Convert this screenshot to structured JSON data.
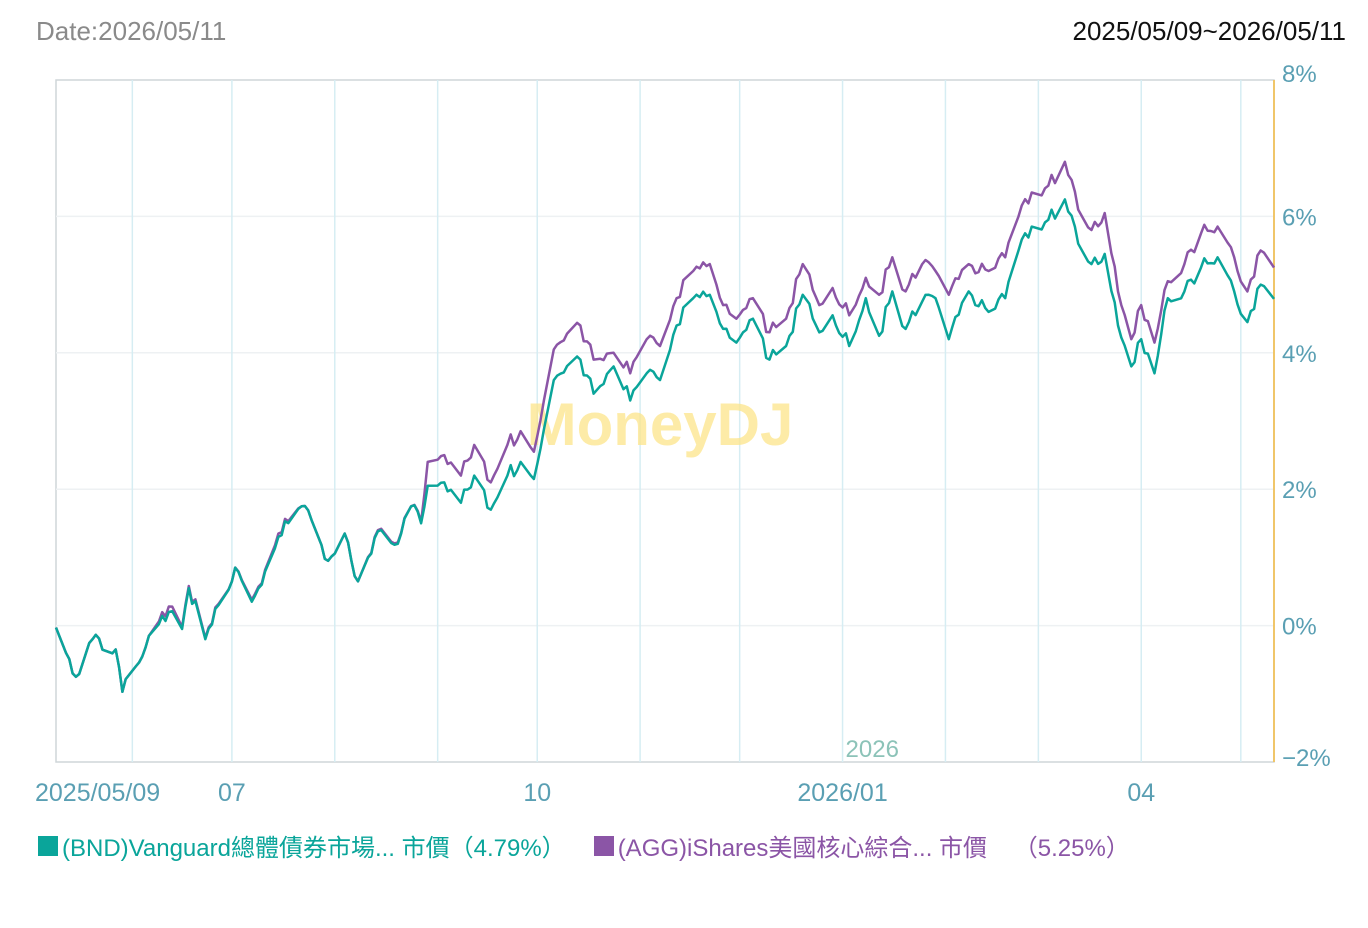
{
  "header": {
    "date_label": "Date:2026/05/11",
    "range_label": "2025/05/09~2026/05/11"
  },
  "watermark": "MoneyDJ",
  "legend": [
    {
      "label": "(BND)Vanguard總體債券市場... 市價（4.79%）",
      "color": "#0aa59a"
    },
    {
      "label": "(AGG)iShares美國核心綜合... 市價    （5.25%）",
      "color": "#8b55a6"
    }
  ],
  "chart_data": {
    "type": "line",
    "x_start": "2025/05/09",
    "x_end": "2026/05/11",
    "x_tick_labels": [
      "2025/05/09",
      "07",
      "10",
      "2026/01",
      "04"
    ],
    "x_tick_dates": [
      "2025-05-09",
      "2025-07-01",
      "2025-10-01",
      "2026-01-01",
      "2026-04-01"
    ],
    "year_marker": "2026",
    "y_tick_labels": [
      "8%",
      "6%",
      "4%",
      "2%",
      "0%",
      "−2%"
    ],
    "y_ticks": [
      8,
      6,
      4,
      2,
      0,
      -2
    ],
    "ylim": [
      -2,
      8
    ],
    "grid": true,
    "series": [
      {
        "name": "(BND)Vanguard總體債券市場... 市價",
        "color": "#0aa59a",
        "final_value": 4.79,
        "keypoints": [
          [
            "2025-05-09",
            -0.03
          ],
          [
            "2025-05-12",
            -0.4
          ],
          [
            "2025-05-15",
            -0.75
          ],
          [
            "2025-05-20",
            -0.2
          ],
          [
            "2025-05-27",
            -0.35
          ],
          [
            "2025-05-29",
            -0.97
          ],
          [
            "2025-06-02",
            -0.6
          ],
          [
            "2025-06-06",
            -0.15
          ],
          [
            "2025-06-12",
            0.2
          ],
          [
            "2025-06-16",
            -0.05
          ],
          [
            "2025-06-18",
            0.55
          ],
          [
            "2025-06-23",
            -0.2
          ],
          [
            "2025-06-27",
            0.3
          ],
          [
            "2025-07-02",
            0.85
          ],
          [
            "2025-07-07",
            0.35
          ],
          [
            "2025-07-10",
            0.6
          ],
          [
            "2025-07-15",
            1.3
          ],
          [
            "2025-07-22",
            1.75
          ],
          [
            "2025-07-25",
            1.55
          ],
          [
            "2025-07-30",
            0.95
          ],
          [
            "2025-08-04",
            1.35
          ],
          [
            "2025-08-08",
            0.65
          ],
          [
            "2025-08-15",
            1.4
          ],
          [
            "2025-08-20",
            1.2
          ],
          [
            "2025-08-24",
            1.75
          ],
          [
            "2025-08-27",
            1.5
          ],
          [
            "2025-08-29",
            2.05
          ],
          [
            "2025-09-03",
            2.1
          ],
          [
            "2025-09-08",
            1.8
          ],
          [
            "2025-09-12",
            2.2
          ],
          [
            "2025-09-17",
            1.7
          ],
          [
            "2025-09-22",
            2.2
          ],
          [
            "2025-09-26",
            2.4
          ],
          [
            "2025-09-30",
            2.15
          ],
          [
            "2025-10-06",
            3.6
          ],
          [
            "2025-10-14",
            3.9
          ],
          [
            "2025-10-18",
            3.4
          ],
          [
            "2025-10-24",
            3.8
          ],
          [
            "2025-10-29",
            3.3
          ],
          [
            "2025-11-03",
            3.7
          ],
          [
            "2025-11-07",
            3.6
          ],
          [
            "2025-11-12",
            4.4
          ],
          [
            "2025-11-17",
            4.8
          ],
          [
            "2025-11-22",
            4.85
          ],
          [
            "2025-11-26",
            4.35
          ],
          [
            "2025-11-30",
            4.15
          ],
          [
            "2025-12-05",
            4.5
          ],
          [
            "2025-12-10",
            3.9
          ],
          [
            "2025-12-15",
            4.1
          ],
          [
            "2025-12-20",
            4.85
          ],
          [
            "2025-12-25",
            4.3
          ],
          [
            "2025-12-29",
            4.55
          ],
          [
            "2026-01-03",
            4.1
          ],
          [
            "2026-01-08",
            4.8
          ],
          [
            "2026-01-12",
            4.25
          ],
          [
            "2026-01-16",
            4.9
          ],
          [
            "2026-01-20",
            4.35
          ],
          [
            "2026-01-25",
            4.75
          ],
          [
            "2026-01-29",
            4.8
          ],
          [
            "2026-02-02",
            4.2
          ],
          [
            "2026-02-08",
            4.9
          ],
          [
            "2026-02-14",
            4.6
          ],
          [
            "2026-02-19",
            4.8
          ],
          [
            "2026-02-23",
            5.5
          ],
          [
            "2026-02-27",
            5.85
          ],
          [
            "2026-03-04",
            5.95
          ],
          [
            "2026-03-09",
            6.25
          ],
          [
            "2026-03-13",
            5.6
          ],
          [
            "2026-03-17",
            5.3
          ],
          [
            "2026-03-21",
            5.45
          ],
          [
            "2026-03-25",
            4.4
          ],
          [
            "2026-03-29",
            3.8
          ],
          [
            "2026-04-01",
            4.2
          ],
          [
            "2026-04-05",
            3.7
          ],
          [
            "2026-04-09",
            4.8
          ],
          [
            "2026-04-14",
            4.9
          ],
          [
            "2026-04-19",
            5.25
          ],
          [
            "2026-04-24",
            5.4
          ],
          [
            "2026-04-29",
            4.9
          ],
          [
            "2026-05-03",
            4.45
          ],
          [
            "2026-05-07",
            5.0
          ],
          [
            "2026-05-11",
            4.79
          ]
        ]
      },
      {
        "name": "(AGG)iShares美國核心綜合... 市價",
        "color": "#8b55a6",
        "final_value": 5.25,
        "keypoints": [
          [
            "2025-05-09",
            -0.03
          ],
          [
            "2025-05-12",
            -0.4
          ],
          [
            "2025-05-15",
            -0.75
          ],
          [
            "2025-05-20",
            -0.2
          ],
          [
            "2025-05-27",
            -0.35
          ],
          [
            "2025-05-29",
            -0.97
          ],
          [
            "2025-06-02",
            -0.6
          ],
          [
            "2025-06-06",
            -0.15
          ],
          [
            "2025-06-12",
            0.28
          ],
          [
            "2025-06-16",
            -0.02
          ],
          [
            "2025-06-18",
            0.58
          ],
          [
            "2025-06-23",
            -0.18
          ],
          [
            "2025-06-27",
            0.32
          ],
          [
            "2025-07-02",
            0.85
          ],
          [
            "2025-07-07",
            0.38
          ],
          [
            "2025-07-10",
            0.62
          ],
          [
            "2025-07-15",
            1.35
          ],
          [
            "2025-07-22",
            1.75
          ],
          [
            "2025-07-25",
            1.55
          ],
          [
            "2025-07-30",
            0.95
          ],
          [
            "2025-08-04",
            1.35
          ],
          [
            "2025-08-08",
            0.65
          ],
          [
            "2025-08-15",
            1.42
          ],
          [
            "2025-08-20",
            1.22
          ],
          [
            "2025-08-24",
            1.75
          ],
          [
            "2025-08-27",
            1.52
          ],
          [
            "2025-08-29",
            2.4
          ],
          [
            "2025-09-03",
            2.5
          ],
          [
            "2025-09-08",
            2.2
          ],
          [
            "2025-09-12",
            2.65
          ],
          [
            "2025-09-17",
            2.1
          ],
          [
            "2025-09-22",
            2.65
          ],
          [
            "2025-09-26",
            2.85
          ],
          [
            "2025-09-30",
            2.55
          ],
          [
            "2025-10-06",
            4.05
          ],
          [
            "2025-10-14",
            4.4
          ],
          [
            "2025-10-18",
            3.9
          ],
          [
            "2025-10-24",
            4.0
          ],
          [
            "2025-10-29",
            3.7
          ],
          [
            "2025-11-03",
            4.2
          ],
          [
            "2025-11-07",
            4.1
          ],
          [
            "2025-11-12",
            4.8
          ],
          [
            "2025-11-17",
            5.2
          ],
          [
            "2025-11-22",
            5.3
          ],
          [
            "2025-11-26",
            4.7
          ],
          [
            "2025-11-30",
            4.5
          ],
          [
            "2025-12-05",
            4.8
          ],
          [
            "2025-12-10",
            4.3
          ],
          [
            "2025-12-15",
            4.5
          ],
          [
            "2025-12-20",
            5.3
          ],
          [
            "2025-12-25",
            4.7
          ],
          [
            "2025-12-29",
            4.95
          ],
          [
            "2026-01-03",
            4.55
          ],
          [
            "2026-01-08",
            5.1
          ],
          [
            "2026-01-12",
            4.85
          ],
          [
            "2026-01-16",
            5.4
          ],
          [
            "2026-01-20",
            4.9
          ],
          [
            "2026-01-25",
            5.3
          ],
          [
            "2026-01-29",
            5.2
          ],
          [
            "2026-02-02",
            4.85
          ],
          [
            "2026-02-08",
            5.3
          ],
          [
            "2026-02-14",
            5.2
          ],
          [
            "2026-02-19",
            5.4
          ],
          [
            "2026-02-23",
            6.0
          ],
          [
            "2026-02-27",
            6.35
          ],
          [
            "2026-03-04",
            6.45
          ],
          [
            "2026-03-09",
            6.8
          ],
          [
            "2026-03-13",
            6.1
          ],
          [
            "2026-03-17",
            5.8
          ],
          [
            "2026-03-21",
            6.05
          ],
          [
            "2026-03-25",
            4.9
          ],
          [
            "2026-03-29",
            4.2
          ],
          [
            "2026-04-01",
            4.7
          ],
          [
            "2026-04-05",
            4.15
          ],
          [
            "2026-04-09",
            5.05
          ],
          [
            "2026-04-14",
            5.3
          ],
          [
            "2026-04-19",
            5.75
          ],
          [
            "2026-04-24",
            5.85
          ],
          [
            "2026-04-29",
            5.4
          ],
          [
            "2026-05-03",
            4.9
          ],
          [
            "2026-05-07",
            5.5
          ],
          [
            "2026-05-11",
            5.25
          ]
        ]
      }
    ]
  }
}
